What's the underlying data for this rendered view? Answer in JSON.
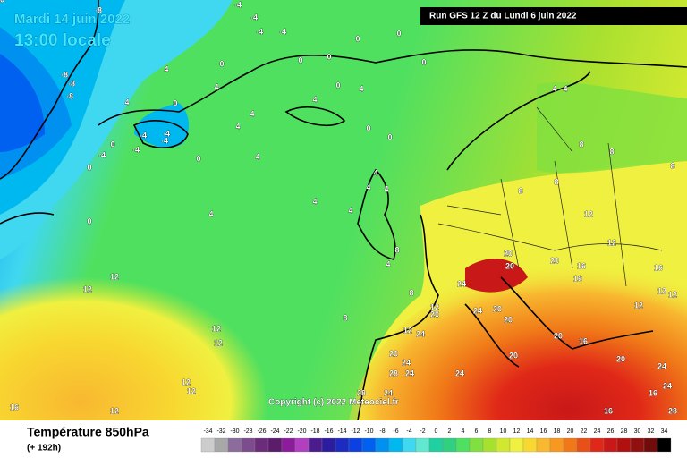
{
  "header": {
    "date": "Mardi 14 juin 2022",
    "time": "13:00 locale",
    "run": "Run GFS 12 Z du Lundi 6 juin 2022"
  },
  "copyright": "Copyright (c) 2022 Meteociel.fr",
  "footer": {
    "title": "Température 850hPa",
    "subtitle": "(+ 192h)"
  },
  "legend": {
    "labels": [
      -34,
      -32,
      -30,
      -28,
      -26,
      -24,
      -22,
      -20,
      -18,
      -16,
      -14,
      -12,
      -10,
      -8,
      -6,
      -4,
      -2,
      0,
      2,
      4,
      6,
      8,
      10,
      12,
      14,
      16,
      18,
      20,
      22,
      24,
      26,
      28,
      30,
      32,
      34
    ],
    "colors": [
      "#cccccc",
      "#a8a8a8",
      "#8c6c9c",
      "#7c4c8c",
      "#6c2c7c",
      "#5c1c6c",
      "#8c1c9c",
      "#b040c0",
      "#4c1c8c",
      "#2c1ca0",
      "#1c2cc0",
      "#0c40e0",
      "#0060f0",
      "#0090f0",
      "#00b8f0",
      "#40d8f0",
      "#60e8d0",
      "#20d0a0",
      "#30d080",
      "#50e060",
      "#80e040",
      "#a8e030",
      "#d0e830",
      "#f0f040",
      "#f8d830",
      "#f8b830",
      "#f89820",
      "#f07818",
      "#e85018",
      "#e02818",
      "#c81818",
      "#b01010",
      "#901010",
      "#700c0c",
      "#000000"
    ]
  },
  "map_labels": [
    -8,
    -4,
    -4,
    -4,
    -4,
    -8,
    -8,
    -8,
    4,
    4,
    0,
    0,
    0,
    0,
    0,
    0,
    0,
    0,
    4,
    4,
    4,
    4,
    4,
    -4,
    -4,
    -4,
    -4,
    0,
    0,
    -4,
    0,
    4,
    0,
    0,
    4,
    4,
    0,
    4,
    4,
    4,
    4,
    8,
    4,
    8,
    8,
    4,
    4,
    8,
    8,
    8,
    8,
    8,
    12,
    12,
    12,
    12,
    12,
    12,
    12,
    12,
    16,
    12,
    12,
    20,
    20,
    20,
    24,
    24,
    20,
    20,
    20,
    16,
    16,
    16,
    12,
    12,
    12,
    12,
    24,
    20,
    24,
    24,
    24,
    28,
    24,
    28,
    20,
    20,
    20,
    16,
    16,
    16,
    24,
    28,
    24,
    16
  ]
}
